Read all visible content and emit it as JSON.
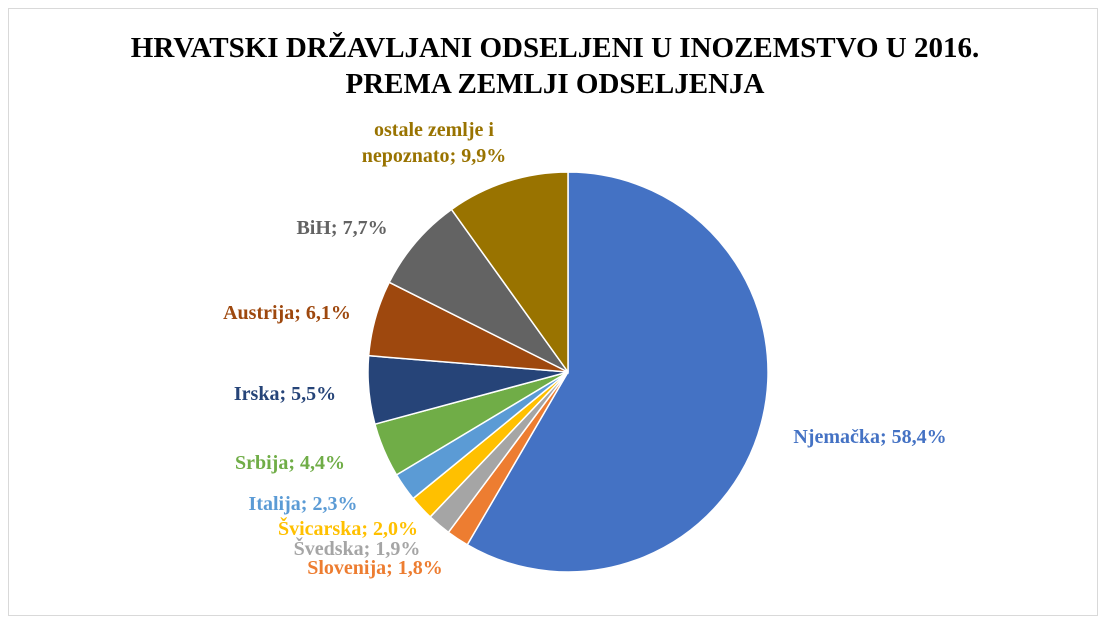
{
  "chart_data": {
    "type": "pie",
    "title": "HRVATSKI DRŽAVLJANI ODSELJENI U INOZEMSTVO U 2016. PREMA ZEMLJI ODSELJENJA",
    "categories": [
      "Njemačka",
      "Slovenija",
      "Švedska",
      "Švicarska",
      "Italija",
      "Srbija",
      "Irska",
      "Austrija",
      "BiH",
      "ostale zemlje i nepoznato"
    ],
    "values": [
      58.4,
      1.8,
      1.9,
      2.0,
      2.3,
      4.4,
      5.5,
      6.1,
      7.7,
      9.9
    ],
    "value_labels": [
      "58,4%",
      "1,8%",
      "1,9%",
      "2,0%",
      "2,3%",
      "4,4%",
      "5,5%",
      "6,1%",
      "7,7%",
      "9,9%"
    ],
    "label_separator": "; ",
    "colors": [
      "#4472c4",
      "#ed7d31",
      "#a5a5a5",
      "#ffc000",
      "#5b9bd5",
      "#70ad47",
      "#264478",
      "#9e480e",
      "#636363",
      "#997300"
    ]
  }
}
